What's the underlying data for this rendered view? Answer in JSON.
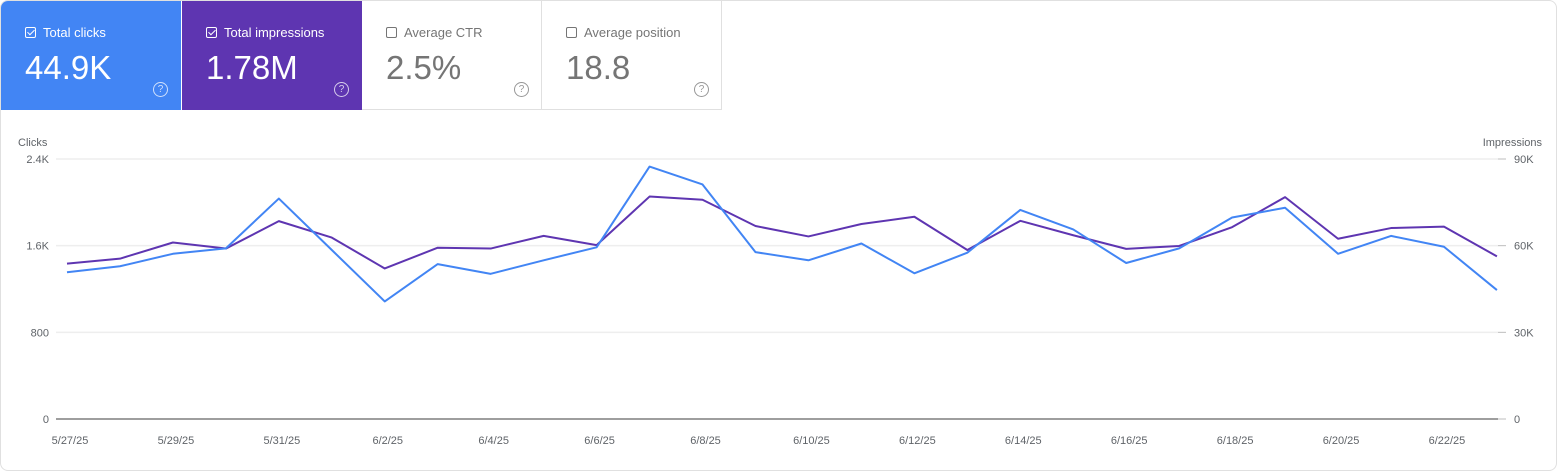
{
  "metrics": [
    {
      "label": "Total clicks",
      "value": "44.9K",
      "checked": true,
      "color": "#4285f4"
    },
    {
      "label": "Total impressions",
      "value": "1.78M",
      "checked": true,
      "color": "#5e35b1"
    },
    {
      "label": "Average CTR",
      "value": "2.5%",
      "checked": false
    },
    {
      "label": "Average position",
      "value": "18.8",
      "checked": false
    }
  ],
  "help_icon": "?",
  "chart_data": {
    "type": "line",
    "grid": true,
    "y_left": {
      "label": "Clicks",
      "range": [
        0,
        2400
      ],
      "ticks": [
        "0",
        "800",
        "1.6K",
        "2.4K"
      ]
    },
    "y_right": {
      "label": "Impressions",
      "range": [
        0,
        90000
      ],
      "ticks": [
        "0",
        "30K",
        "60K",
        "90K"
      ]
    },
    "x_tick_labels": [
      "5/27/25",
      "5/29/25",
      "5/31/25",
      "6/2/25",
      "6/4/25",
      "6/6/25",
      "6/8/25",
      "6/10/25",
      "6/12/25",
      "6/14/25",
      "6/16/25",
      "6/18/25",
      "6/20/25",
      "6/22/25"
    ],
    "x": [
      "5/27/25",
      "5/28/25",
      "5/29/25",
      "5/30/25",
      "5/31/25",
      "6/1/25",
      "6/2/25",
      "6/3/25",
      "6/4/25",
      "6/5/25",
      "6/6/25",
      "6/7/25",
      "6/8/25",
      "6/9/25",
      "6/10/25",
      "6/11/25",
      "6/12/25",
      "6/13/25",
      "6/14/25",
      "6/15/25",
      "6/16/25",
      "6/17/25",
      "6/18/25",
      "6/19/25",
      "6/20/25",
      "6/21/25",
      "6/22/25",
      "6/23/25"
    ],
    "series": [
      {
        "name": "Clicks",
        "axis": "left",
        "color": "#4285f4",
        "values": [
          1355,
          1410,
          1525,
          1575,
          2035,
          1560,
          1085,
          1430,
          1340,
          1465,
          1585,
          2330,
          2165,
          1540,
          1465,
          1620,
          1345,
          1535,
          1930,
          1750,
          1440,
          1575,
          1860,
          1950,
          1525,
          1690,
          1590,
          1190
        ]
      },
      {
        "name": "Impressions",
        "axis": "right",
        "color": "#5e35b1",
        "values": [
          53800,
          55500,
          61100,
          59000,
          68500,
          62800,
          52100,
          59300,
          59000,
          63400,
          60200,
          77000,
          75900,
          66800,
          63200,
          67500,
          70000,
          58500,
          68600,
          63600,
          58900,
          59900,
          66400,
          76800,
          62400,
          66100,
          66600,
          56300
        ]
      }
    ]
  }
}
